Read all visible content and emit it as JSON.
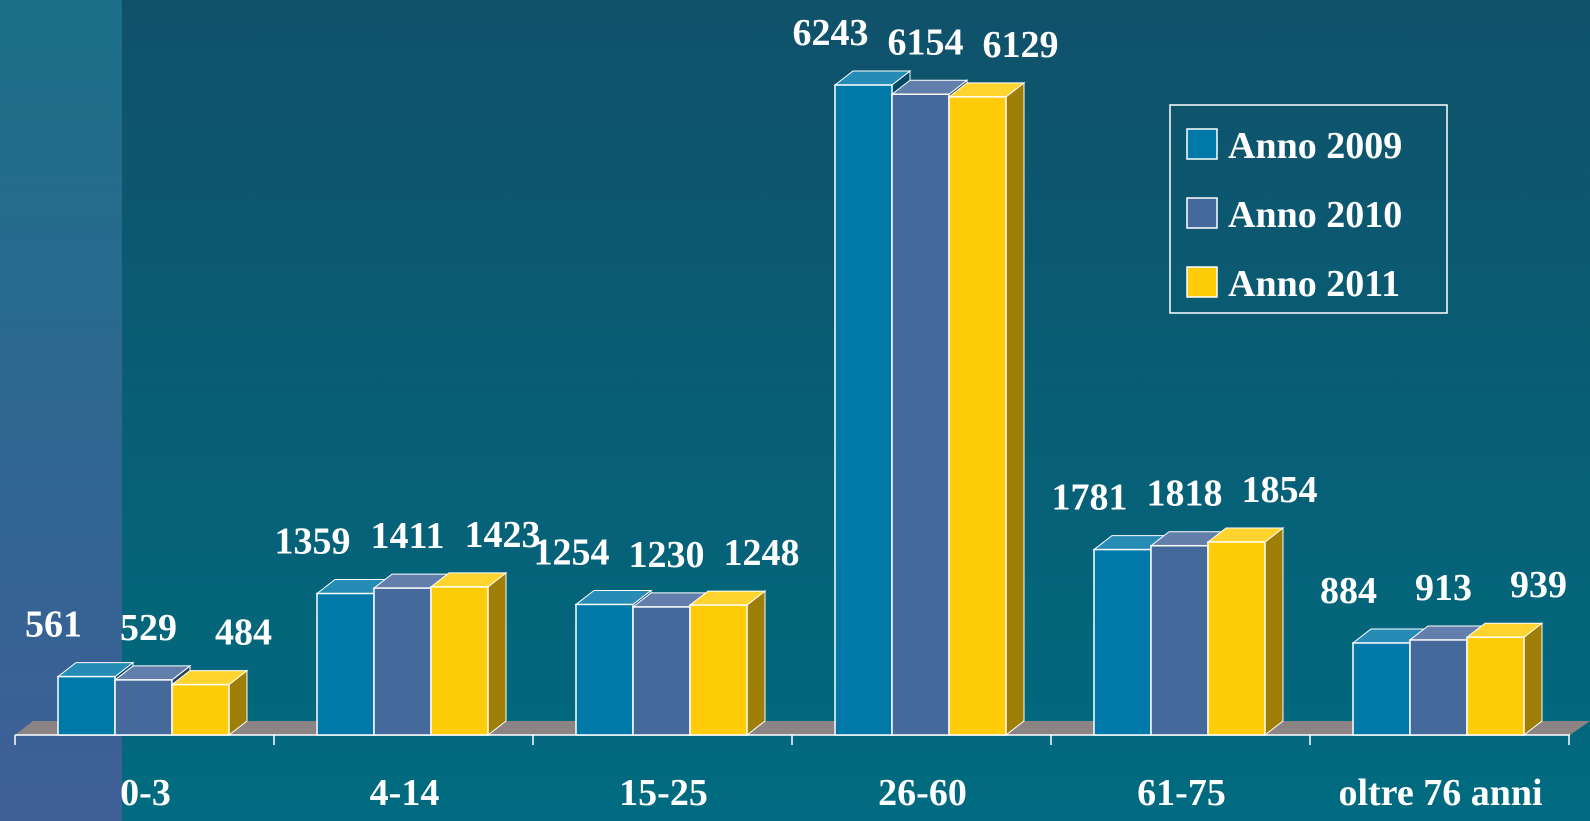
{
  "chart_data": {
    "type": "bar3d",
    "categories": [
      "0-3",
      "4-14",
      "15-25",
      "26-60",
      "61-75",
      "oltre 76 anni"
    ],
    "series": [
      {
        "name": "Anno 2009",
        "color": "#0078a8",
        "values": [
          561,
          1359,
          1254,
          6243,
          1781,
          884
        ]
      },
      {
        "name": "Anno 2010",
        "color": "#46699c",
        "values": [
          529,
          1411,
          1230,
          6154,
          1818,
          913
        ]
      },
      {
        "name": "Anno 2011",
        "color": "#ffcc0a",
        "values": [
          484,
          1423,
          1248,
          6129,
          1854,
          939
        ]
      }
    ],
    "legend": "upper right"
  }
}
